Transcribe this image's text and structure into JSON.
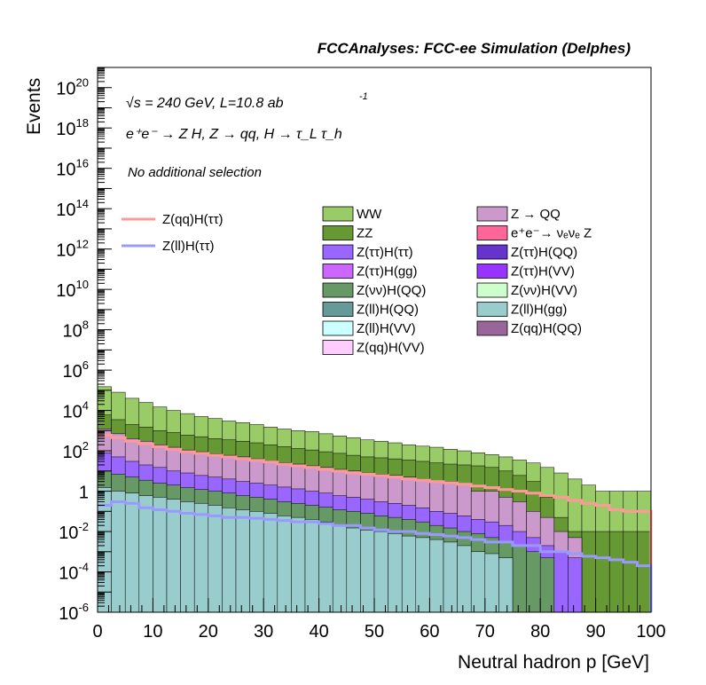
{
  "header": {
    "title": "FCCAnalyses: FCC-ee Simulation (Delphes)"
  },
  "annotations": {
    "energy_line": "√s = 240 GeV, L=10.8 ab",
    "lumi_exp": "-1",
    "process_line": "e⁺e⁻ → Z H, Z → qq, H → τ_L τ_h",
    "selection_line": "No additional selection"
  },
  "chart_data": {
    "type": "area",
    "title": "FCCAnalyses: FCC-ee Simulation (Delphes)",
    "xlabel": "Neutral hadron p [GeV]",
    "ylabel": "Events",
    "xlim": [
      0,
      100
    ],
    "ylim": [
      1e-06,
      1e+21
    ],
    "yscale": "log",
    "x_ticks": [
      0,
      10,
      20,
      30,
      40,
      50,
      60,
      70,
      80,
      90,
      100
    ],
    "y_ticks": [
      {
        "exp": -6,
        "label": "10-6"
      },
      {
        "exp": -4,
        "label": "10-4"
      },
      {
        "exp": -2,
        "label": "10-2"
      },
      {
        "exp": 0,
        "label": "1"
      },
      {
        "exp": 2,
        "label": "102"
      },
      {
        "exp": 4,
        "label": "104"
      },
      {
        "exp": 6,
        "label": "106"
      },
      {
        "exp": 8,
        "label": "108"
      },
      {
        "exp": 10,
        "label": "1010"
      },
      {
        "exp": 12,
        "label": "1012"
      },
      {
        "exp": 14,
        "label": "1014"
      },
      {
        "exp": 16,
        "label": "1016"
      },
      {
        "exp": 18,
        "label": "1018"
      },
      {
        "exp": 20,
        "label": "1020"
      }
    ],
    "bin_width": 2.5,
    "stack_tops": [
      {
        "name": "WW",
        "color": "#99cc66",
        "values": [
          150000,
          80000,
          40000,
          25000,
          15000,
          10000,
          7000,
          5000,
          4000,
          3000,
          2500,
          2000,
          1500,
          1200,
          1000,
          900,
          700,
          550,
          450,
          350,
          300,
          250,
          200,
          170,
          150,
          120,
          100,
          80,
          65,
          50,
          35,
          25,
          15,
          8,
          4,
          2,
          1,
          1,
          1,
          1
        ]
      },
      {
        "name": "ZZ",
        "color": "#669933",
        "values": [
          6000,
          3500,
          2000,
          1500,
          1000,
          800,
          600,
          500,
          400,
          350,
          300,
          250,
          200,
          160,
          130,
          110,
          90,
          75,
          60,
          50,
          45,
          40,
          35,
          30,
          25,
          22,
          20,
          18,
          15,
          10,
          6,
          3,
          0.5,
          0.05,
          0.01,
          0.01,
          0.01,
          0.01,
          0.01,
          0.01
        ]
      },
      {
        "name": "Z → QQ",
        "color": "#cc99cc",
        "values": [
          1200,
          700,
          400,
          300,
          200,
          150,
          110,
          90,
          70,
          60,
          50,
          40,
          32,
          26,
          22,
          18,
          15,
          12,
          10,
          8,
          7,
          6,
          5,
          4,
          3,
          3,
          2,
          1,
          1,
          0.5,
          0.3,
          0.1,
          0.05,
          0.01,
          0.005,
          0,
          0,
          0,
          0,
          0
        ]
      },
      {
        "name": "Z(ττ)H(ττ)",
        "color": "#9966ff",
        "values": [
          80,
          50,
          30,
          20,
          15,
          10,
          8,
          6,
          5,
          4,
          3,
          2.5,
          2,
          1.6,
          1.3,
          1,
          0.8,
          0.6,
          0.5,
          0.4,
          0.3,
          0.25,
          0.2,
          0.15,
          0.1,
          0.08,
          0.06,
          0.04,
          0.03,
          0.02,
          0.01,
          0.005,
          0.002,
          0.001,
          0.0005,
          0,
          0,
          0,
          0,
          0
        ]
      },
      {
        "name": "Z(νν)H(QQ)",
        "color": "#669966",
        "values": [
          10,
          7,
          5,
          3.5,
          2.5,
          2,
          1.5,
          1.2,
          1,
          0.8,
          0.6,
          0.5,
          0.4,
          0.3,
          0.25,
          0.2,
          0.16,
          0.12,
          0.1,
          0.08,
          0.06,
          0.05,
          0.04,
          0.03,
          0.02,
          0.015,
          0.01,
          0.008,
          0.005,
          0.003,
          0.002,
          0.001,
          0.0005,
          0,
          0,
          0,
          0,
          0,
          0,
          0
        ]
      },
      {
        "name": "Z(ll)H(gg)",
        "color": "#99cccc",
        "values": [
          1.5,
          1,
          0.8,
          0.6,
          0.5,
          0.4,
          0.3,
          0.25,
          0.2,
          0.15,
          0.12,
          0.1,
          0.08,
          0.06,
          0.05,
          0.04,
          0.03,
          0.02,
          0.015,
          0.012,
          0.01,
          0.008,
          0.006,
          0.005,
          0.004,
          0.003,
          0.002,
          0.001,
          0.0008,
          0.0005,
          0,
          0,
          0,
          0,
          0,
          0,
          0,
          0,
          0,
          0
        ]
      }
    ],
    "signal_lines": [
      {
        "name": "Z(qq)H(ττ)",
        "color": "#ff9999",
        "values": [
          600,
          450,
          300,
          220,
          160,
          120,
          90,
          75,
          60,
          50,
          40,
          34,
          28,
          22,
          18,
          15,
          12,
          10,
          8,
          7,
          6,
          5,
          4,
          3.5,
          3,
          2.6,
          2.2,
          1.8,
          1.5,
          1.2,
          1,
          0.8,
          0.6,
          0.5,
          0.35,
          0.25,
          0.2,
          0.12,
          0.1,
          0.1
        ]
      },
      {
        "name": "Z(ll)H(ττ)",
        "color": "#9999ff",
        "values": [
          0.2,
          0.3,
          0.25,
          0.15,
          0.12,
          0.1,
          0.08,
          0.07,
          0.06,
          0.05,
          0.05,
          0.045,
          0.04,
          0.035,
          0.03,
          0.03,
          0.025,
          0.02,
          0.02,
          0.015,
          0.012,
          0.01,
          0.01,
          0.008,
          0.007,
          0.006,
          0.005,
          0.004,
          0.003,
          0.003,
          0.002,
          0.002,
          0.001,
          0.001,
          0.0008,
          0.0006,
          0.0005,
          0.0004,
          0.0003,
          0.0002
        ]
      }
    ],
    "legend": {
      "placement": "top-right",
      "lines": [
        {
          "label": "Z(qq)H(ττ)",
          "color": "#ff9999"
        },
        {
          "label": "Z(ll)H(ττ)",
          "color": "#9999ff"
        }
      ],
      "boxes": [
        {
          "label": "WW",
          "color": "#99cc66"
        },
        {
          "label": "Z → QQ",
          "color": "#cc99cc"
        },
        {
          "label": "ZZ",
          "color": "#669933"
        },
        {
          "label": "e⁺e⁻→ νₑνₑ Z",
          "color": "#ff6699"
        },
        {
          "label": "Z(ττ)H(ττ)",
          "color": "#9966ff"
        },
        {
          "label": "Z(ττ)H(QQ)",
          "color": "#6633cc"
        },
        {
          "label": "Z(ττ)H(gg)",
          "color": "#cc66ff"
        },
        {
          "label": "Z(ττ)H(VV)",
          "color": "#9933ff"
        },
        {
          "label": "Z(νν)H(QQ)",
          "color": "#669966"
        },
        {
          "label": "Z(νν)H(VV)",
          "color": "#ccffcc"
        },
        {
          "label": "Z(ll)H(QQ)",
          "color": "#669999"
        },
        {
          "label": "Z(ll)H(gg)",
          "color": "#99cccc"
        },
        {
          "label": "Z(ll)H(VV)",
          "color": "#ccffff"
        },
        {
          "label": "Z(qq)H(QQ)",
          "color": "#996699"
        },
        {
          "label": "Z(qq)H(VV)",
          "color": "#ffccff"
        }
      ]
    },
    "grid": false
  }
}
